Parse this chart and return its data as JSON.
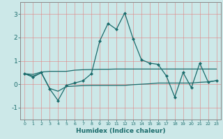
{
  "xlabel": "Humidex (Indice chaleur)",
  "ylabel": "",
  "background_color": "#cce8e8",
  "grid_color": "#e08080",
  "line_color": "#1a6b6b",
  "spine_color": "#888888",
  "xlim_min": -0.5,
  "xlim_max": 23.5,
  "ylim_min": -1.5,
  "ylim_max": 3.5,
  "yticks": [
    -1,
    0,
    1,
    2,
    3
  ],
  "xticks": [
    0,
    1,
    2,
    3,
    4,
    5,
    6,
    7,
    8,
    9,
    10,
    11,
    12,
    13,
    14,
    15,
    16,
    17,
    18,
    19,
    20,
    21,
    22,
    23
  ],
  "line1_x": [
    0,
    1,
    2,
    3,
    4,
    5,
    6,
    7,
    8,
    9,
    10,
    11,
    12,
    13,
    14,
    15,
    16,
    17,
    18,
    19,
    20,
    21,
    22,
    23
  ],
  "line1_y": [
    0.45,
    0.3,
    0.5,
    -0.2,
    -0.7,
    -0.05,
    0.05,
    0.15,
    0.45,
    1.85,
    2.6,
    2.35,
    3.05,
    1.95,
    1.05,
    0.9,
    0.85,
    0.35,
    -0.55,
    0.5,
    -0.15,
    0.9,
    0.1,
    0.15
  ],
  "line2_x": [
    0,
    1,
    2,
    3,
    4,
    5,
    6,
    7,
    8,
    9,
    10,
    11,
    12,
    13,
    14,
    15,
    16,
    17,
    18,
    19,
    20,
    21,
    22,
    23
  ],
  "line2_y": [
    0.45,
    0.42,
    0.52,
    0.55,
    0.55,
    0.55,
    0.6,
    0.62,
    0.63,
    0.64,
    0.64,
    0.65,
    0.65,
    0.65,
    0.65,
    0.65,
    0.65,
    0.65,
    0.65,
    0.65,
    0.65,
    0.65,
    0.65,
    0.65
  ],
  "line3_x": [
    0,
    1,
    2,
    3,
    4,
    5,
    6,
    7,
    8,
    9,
    10,
    11,
    12,
    13,
    14,
    15,
    16,
    17,
    18,
    19,
    20,
    21,
    22,
    23
  ],
  "line3_y": [
    0.45,
    0.35,
    0.48,
    -0.18,
    -0.3,
    -0.1,
    -0.08,
    -0.06,
    -0.05,
    -0.05,
    -0.05,
    -0.05,
    -0.05,
    -0.02,
    0.0,
    0.02,
    0.05,
    0.05,
    0.05,
    0.05,
    0.05,
    0.08,
    0.1,
    0.15
  ]
}
